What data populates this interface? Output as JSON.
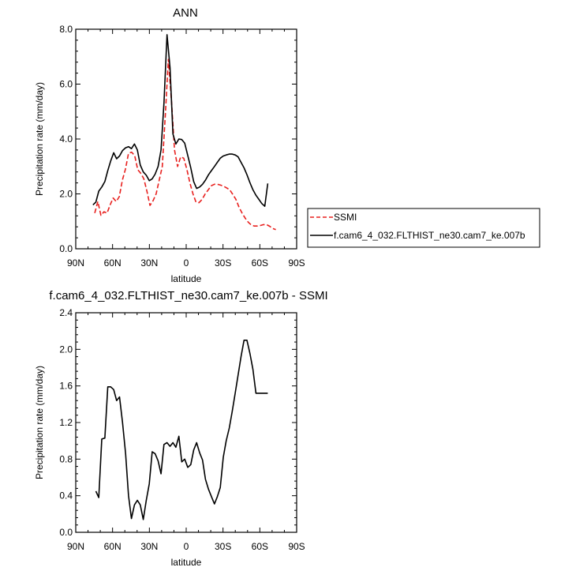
{
  "chart_data": [
    {
      "type": "line",
      "title": "ANN",
      "xlabel": "latitude",
      "ylabel": "Precipitation rate (mm/day)",
      "xlim": [
        90,
        -90
      ],
      "ylim": [
        0,
        8
      ],
      "xticks": [
        90,
        60,
        30,
        0,
        -30,
        -60,
        -90
      ],
      "xtick_labels": [
        "90N",
        "60N",
        "30N",
        "0",
        "30S",
        "60S",
        "90S"
      ],
      "yticks": [
        0,
        2,
        4,
        6,
        8
      ],
      "ytick_labels": [
        "0.0",
        "2.0",
        "4.0",
        "6.0",
        "8.0"
      ],
      "grid": false,
      "legend_position": "right",
      "series": [
        {
          "name": "SSMI",
          "color": "#e8201e",
          "dash": "dashed",
          "x": [
            74.5,
            72,
            69.5,
            67,
            64.5,
            62,
            59.5,
            57,
            54.5,
            52,
            49.5,
            47,
            44.5,
            42,
            39.5,
            37,
            34.5,
            32,
            29.5,
            27,
            24.5,
            22,
            19.5,
            17,
            14.5,
            12,
            9.5,
            7,
            4.5,
            2,
            -0.5,
            -3,
            -5.5,
            -8,
            -10.5,
            -13,
            -15.5,
            -18,
            -20.5,
            -23,
            -25.5,
            -28,
            -30.5,
            -33,
            -35.5,
            -38,
            -40.5,
            -43,
            -45.5,
            -48,
            -50.5,
            -53,
            -55.5,
            -58,
            -60.5,
            -63,
            -65.5,
            -68,
            -70.5,
            -73
          ],
          "values": [
            1.3,
            1.72,
            1.22,
            1.35,
            1.3,
            1.6,
            1.85,
            1.72,
            1.9,
            2.5,
            2.9,
            3.48,
            3.52,
            3.4,
            2.88,
            2.75,
            2.55,
            2.1,
            1.58,
            1.75,
            2.0,
            2.5,
            3.0,
            4.9,
            6.9,
            5.4,
            3.6,
            3.0,
            3.35,
            3.3,
            2.9,
            2.4,
            2.0,
            1.7,
            1.68,
            1.8,
            2.0,
            2.15,
            2.3,
            2.35,
            2.35,
            2.32,
            2.28,
            2.22,
            2.15,
            1.98,
            1.8,
            1.52,
            1.3,
            1.12,
            0.97,
            0.87,
            0.83,
            0.83,
            0.85,
            0.88,
            0.88,
            0.82,
            0.74,
            0.7
          ]
        },
        {
          "name": "f.cam6_4_032.FLTHIST_ne30.cam7_ke.007b",
          "color": "#000000",
          "dash": "solid",
          "x": [
            76,
            73.6,
            71.2,
            68.8,
            66.3,
            63.9,
            61.5,
            59.1,
            56.7,
            54.3,
            51.9,
            49.4,
            47,
            44.6,
            42.2,
            39.8,
            37.4,
            35,
            32.5,
            30.1,
            27.7,
            25.3,
            22.9,
            20.5,
            18.1,
            15.6,
            13.2,
            10.8,
            8.4,
            6,
            3.6,
            1.2,
            -1.3,
            -3.7,
            -6.1,
            -8.5,
            -10.9,
            -13.3,
            -15.7,
            -18.2,
            -20.6,
            -23,
            -25.4,
            -27.8,
            -30.2,
            -32.6,
            -35.1,
            -37.5,
            -39.9,
            -42.3,
            -44.7,
            -47.1,
            -49.5,
            -52,
            -54.4,
            -56.8,
            -59.2,
            -61.6,
            -64,
            -66.5
          ],
          "values": [
            1.6,
            1.7,
            2.1,
            2.25,
            2.45,
            2.85,
            3.2,
            3.5,
            3.28,
            3.38,
            3.58,
            3.68,
            3.72,
            3.65,
            3.82,
            3.6,
            3.05,
            2.8,
            2.68,
            2.48,
            2.55,
            2.72,
            3.0,
            3.6,
            5.3,
            7.8,
            6.6,
            4.18,
            3.82,
            4.0,
            3.98,
            3.85,
            3.4,
            2.95,
            2.45,
            2.2,
            2.25,
            2.35,
            2.5,
            2.7,
            2.85,
            3.0,
            3.15,
            3.3,
            3.38,
            3.42,
            3.45,
            3.45,
            3.42,
            3.35,
            3.15,
            2.95,
            2.7,
            2.4,
            2.15,
            1.95,
            1.8,
            1.65,
            1.55,
            2.38
          ]
        }
      ]
    },
    {
      "type": "line",
      "title": "f.cam6_4_032.FLTHIST_ne30.cam7_ke.007b - SSMI",
      "xlabel": "latitude",
      "ylabel": "Precipitation rate (mm/day)",
      "xlim": [
        90,
        -90
      ],
      "ylim": [
        0,
        2.4
      ],
      "xticks": [
        90,
        60,
        30,
        0,
        -30,
        -60,
        -90
      ],
      "xtick_labels": [
        "90N",
        "60N",
        "30N",
        "0",
        "30S",
        "60S",
        "90S"
      ],
      "yticks": [
        0,
        0.4,
        0.8,
        1.2,
        1.6,
        2.0,
        2.4
      ],
      "ytick_labels": [
        "0.0",
        "0.4",
        "0.8",
        "1.2",
        "1.6",
        "2.0",
        "2.4"
      ],
      "grid": false,
      "series": [
        {
          "color": "#000000",
          "dash": "solid",
          "x": [
            73.6,
            71.2,
            68.8,
            66.3,
            63.9,
            61.5,
            59.1,
            56.7,
            54.3,
            51.9,
            49.4,
            47,
            44.6,
            42.2,
            39.8,
            37.4,
            35,
            32.5,
            30.1,
            27.7,
            25.3,
            22.9,
            20.5,
            18.1,
            15.6,
            13.2,
            10.8,
            8.4,
            6,
            3.6,
            1.2,
            -1.3,
            -3.7,
            -6.1,
            -8.5,
            -10.9,
            -13.3,
            -15.7,
            -18.2,
            -20.6,
            -23,
            -25.4,
            -27.8,
            -30.2,
            -32.6,
            -35.1,
            -37.5,
            -39.9,
            -42.3,
            -44.7,
            -47.1,
            -49.5,
            -52,
            -54.4,
            -56.8,
            -59.2,
            -61.6,
            -64,
            -66.5
          ],
          "values": [
            0.45,
            0.38,
            1.02,
            1.03,
            1.59,
            1.59,
            1.56,
            1.44,
            1.48,
            1.2,
            0.86,
            0.4,
            0.15,
            0.3,
            0.35,
            0.3,
            0.14,
            0.35,
            0.53,
            0.88,
            0.86,
            0.78,
            0.64,
            0.96,
            0.98,
            0.94,
            0.98,
            0.93,
            1.05,
            0.77,
            0.8,
            0.71,
            0.74,
            0.9,
            0.98,
            0.87,
            0.79,
            0.58,
            0.47,
            0.39,
            0.31,
            0.39,
            0.49,
            0.82,
            1.0,
            1.14,
            1.32,
            1.52,
            1.72,
            1.92,
            2.1,
            2.1,
            1.95,
            1.78,
            1.52,
            1.52,
            1.52,
            1.52,
            1.52
          ]
        }
      ]
    }
  ]
}
